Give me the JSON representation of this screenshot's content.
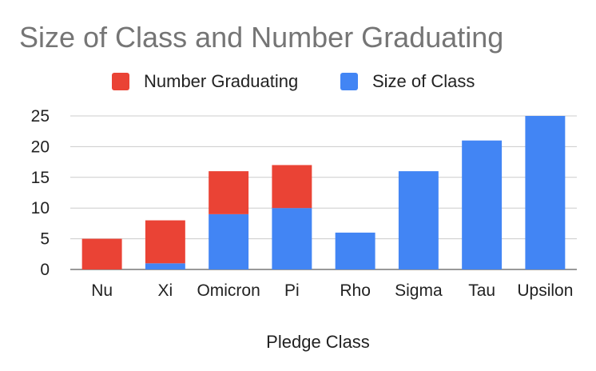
{
  "chart_data": {
    "type": "bar",
    "stacked": true,
    "title": "Size of Class and Number Graduating",
    "xlabel": "Pledge Class",
    "ylabel": "",
    "categories": [
      "Nu",
      "Xi",
      "Omicron",
      "Pi",
      "Rho",
      "Sigma",
      "Tau",
      "Upsilon"
    ],
    "series": [
      {
        "name": "Number Graduating",
        "color": "#ea4335",
        "values": [
          5,
          7,
          7,
          7,
          0,
          0,
          0,
          0
        ]
      },
      {
        "name": "Size of Class",
        "color": "#4285f4",
        "values": [
          0,
          1,
          9,
          10,
          6,
          16,
          21,
          25
        ]
      }
    ],
    "ylim": [
      0,
      25
    ],
    "yticks": [
      0,
      5,
      10,
      15,
      20,
      25
    ],
    "grid": true,
    "legend_position": "top"
  }
}
